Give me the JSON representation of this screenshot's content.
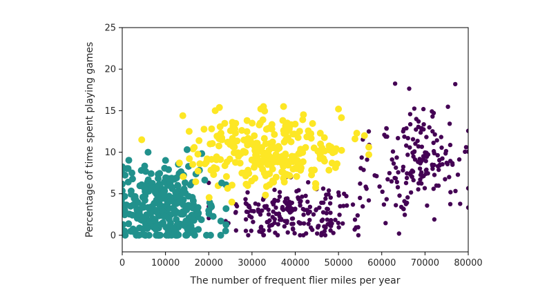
{
  "chart_data": {
    "type": "scatter",
    "title": "",
    "xlabel": "The number of frequent flier miles per year",
    "ylabel": "Percentage of time spent playing games",
    "xlim": [
      0,
      80000
    ],
    "ylim": [
      -2,
      25
    ],
    "xticks": [
      0,
      10000,
      20000,
      30000,
      40000,
      50000,
      60000,
      70000,
      80000
    ],
    "xtick_labels": [
      "0",
      "10000",
      "20000",
      "30000",
      "40000",
      "50000",
      "60000",
      "70000",
      "80000"
    ],
    "yticks": [
      0,
      5,
      10,
      15,
      20,
      25
    ],
    "ytick_labels": [
      "0",
      "5",
      "10",
      "15",
      "20",
      "25"
    ],
    "grid": false,
    "legend": "none",
    "clusters": [
      {
        "color": "#fde725",
        "marker_size": "large",
        "approx_points": 260,
        "x_range": [
          3000,
          57000
        ],
        "y_range": [
          4,
          15.5
        ],
        "center": [
          34000,
          10
        ],
        "spread": [
          9000,
          2.2
        ]
      },
      {
        "color": "#21918c",
        "marker_size": "large",
        "approx_points": 300,
        "x_range": [
          0,
          24000
        ],
        "y_range": [
          0,
          10
        ],
        "center": [
          10000,
          3.5
        ],
        "spread": [
          6000,
          2.5
        ]
      },
      {
        "color": "#440154",
        "marker_size": "small",
        "approx_points": 220,
        "x_range": [
          20000,
          57000
        ],
        "y_range": [
          0,
          7
        ],
        "center": [
          39000,
          2.8
        ],
        "spread": [
          8500,
          1.8
        ]
      },
      {
        "color": "#440154",
        "marker_size": "small",
        "approx_points": 170,
        "x_range": [
          55000,
          80000
        ],
        "y_range": [
          0,
          18.5
        ],
        "center": [
          69000,
          9
        ],
        "spread": [
          5500,
          3.3
        ]
      }
    ],
    "sample_points": [
      {
        "x": 50000,
        "y": 15.2,
        "color": "#fde725"
      },
      {
        "x": 21500,
        "y": 15.0,
        "color": "#fde725"
      },
      {
        "x": 14000,
        "y": 14.4,
        "color": "#fde725"
      },
      {
        "x": 4500,
        "y": 11.5,
        "color": "#fde725"
      },
      {
        "x": 56000,
        "y": 12.0,
        "color": "#fde725"
      },
      {
        "x": 15000,
        "y": 10.3,
        "color": "#21918c"
      },
      {
        "x": 23000,
        "y": 6.3,
        "color": "#21918c"
      },
      {
        "x": 0,
        "y": 8.0,
        "color": "#21918c"
      },
      {
        "x": 64000,
        "y": 0.2,
        "color": "#440154"
      },
      {
        "x": 77000,
        "y": 18.2,
        "color": "#440154"
      },
      {
        "x": 79500,
        "y": 10.6,
        "color": "#440154"
      },
      {
        "x": 60500,
        "y": 3.7,
        "color": "#440154"
      },
      {
        "x": 57000,
        "y": 12.5,
        "color": "#440154"
      }
    ]
  }
}
